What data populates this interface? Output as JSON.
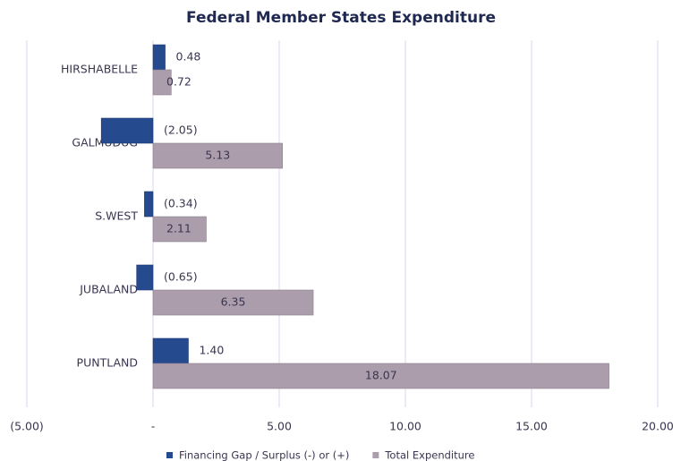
{
  "chart_data": {
    "type": "hbar",
    "title": "Federal Member States Expenditure",
    "categories": [
      "HIRSHABELLE",
      "GALMUDUG",
      "S.WEST",
      "JUBALAND",
      "PUNTLAND"
    ],
    "series": [
      {
        "name": "Financing Gap / Surplus (-) or (+)",
        "color": "#264a8e",
        "values": [
          0.48,
          -2.05,
          -0.34,
          -0.65,
          1.4
        ],
        "value_labels": [
          "0.48",
          "(2.05)",
          "(0.34)",
          "(0.65)",
          "1.40"
        ]
      },
      {
        "name": "Total Expenditure",
        "color": "#ab9dab",
        "values": [
          0.72,
          5.13,
          2.11,
          6.35,
          18.07
        ],
        "value_labels": [
          "0.72",
          "5.13",
          "2.11",
          "6.35",
          "18.07"
        ]
      }
    ],
    "xlim": [
      -5,
      20
    ],
    "xticks": [
      {
        "value": -5,
        "label": "(5.00)"
      },
      {
        "value": 0,
        "label": "-"
      },
      {
        "value": 5,
        "label": "5.00"
      },
      {
        "value": 10,
        "label": "10.00"
      },
      {
        "value": 15,
        "label": "15.00"
      },
      {
        "value": 20,
        "label": "20.00"
      }
    ],
    "grid": true,
    "legend": "bottom"
  }
}
